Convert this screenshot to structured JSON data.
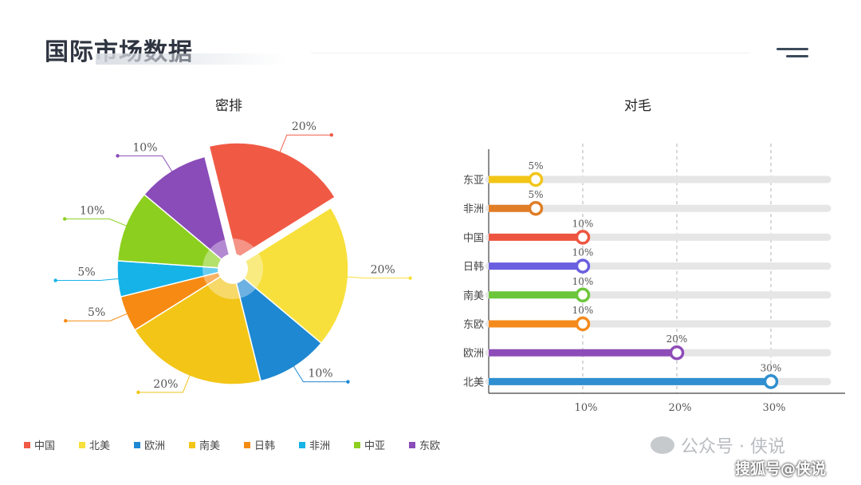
{
  "header": {
    "title": "国际市场数据"
  },
  "watermark": {
    "text": "公众号 · 侠说",
    "source": "搜狐号@侠说"
  },
  "chart_data": [
    {
      "type": "pie",
      "title": "密排",
      "slices": [
        {
          "name": "中国",
          "value": 20,
          "label": "20%",
          "color": "#f05a45"
        },
        {
          "name": "北美",
          "value": 20,
          "label": "20%",
          "color": "#f8e03c"
        },
        {
          "name": "欧洲",
          "value": 10,
          "label": "10%",
          "color": "#1e88d2"
        },
        {
          "name": "南美",
          "value": 20,
          "label": "20%",
          "color": "#f2c517"
        },
        {
          "name": "日韩",
          "value": 5,
          "label": "5%",
          "color": "#f68a12"
        },
        {
          "name": "非洲",
          "value": 5,
          "label": "5%",
          "color": "#16b3e8"
        },
        {
          "name": "中亚",
          "value": 10,
          "label": "10%",
          "color": "#8ccf1e"
        },
        {
          "name": "东欧",
          "value": 10,
          "label": "10%",
          "color": "#8a4cb8"
        }
      ]
    },
    {
      "type": "bar",
      "title": "对毛",
      "orientation": "horizontal",
      "categories": [
        "东亚",
        "非洲",
        "中国",
        "日韩",
        "南美",
        "东欧",
        "欧洲",
        "北美"
      ],
      "values": [
        5,
        5,
        10,
        10,
        10,
        10,
        20,
        30
      ],
      "value_labels": [
        "5%",
        "5%",
        "10%",
        "10%",
        "10%",
        "10%",
        "20%",
        "30%"
      ],
      "colors": [
        "#f2c517",
        "#e07d26",
        "#ee5540",
        "#6a5fe0",
        "#6cc63c",
        "#f58a1c",
        "#8e4cb8",
        "#2f8fd0"
      ],
      "xticks": [
        "10%",
        "20%",
        "30%"
      ],
      "xlim": [
        0,
        36
      ],
      "grid": true
    }
  ]
}
